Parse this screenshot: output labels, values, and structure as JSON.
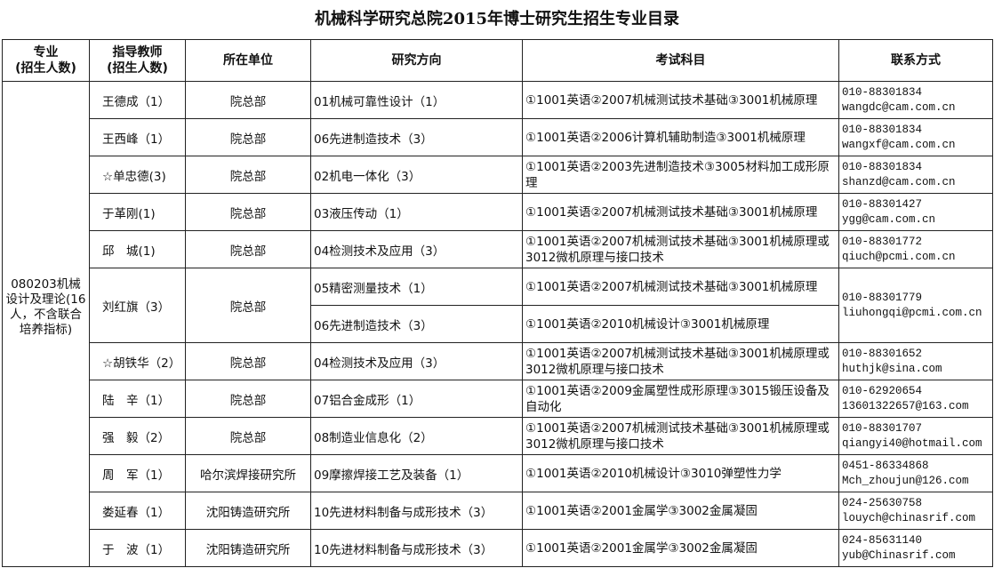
{
  "title": "机械科学研究总院2015年博士研究生招生专业目录",
  "headers": {
    "major": [
      "专业",
      "(招生人数)"
    ],
    "advisor": [
      "指导教师",
      "(招生人数)"
    ],
    "unit": "所在单位",
    "direction": "研究方向",
    "exam": "考试科目",
    "contact": "联系方式"
  },
  "major": "080203机械设计及理论(16人，不含联合培养指标)",
  "rows": [
    {
      "advisor": "王德成（1）",
      "unit": "院总部",
      "entries": [
        {
          "direction": "01机械可靠性设计（1）",
          "exam": "①1001英语②2007机械测试技术基础③3001机械原理"
        }
      ],
      "phone": "010-88301834",
      "email": "wangdc@cam.com.cn"
    },
    {
      "advisor": "王西峰（1）",
      "unit": "院总部",
      "entries": [
        {
          "direction": "06先进制造技术（3）",
          "exam": "①1001英语②2006计算机辅助制造③3001机械原理"
        }
      ],
      "phone": "010-88301834",
      "email": "wangxf@cam.com.cn"
    },
    {
      "advisor": "☆单忠德(3)",
      "unit": "院总部",
      "entries": [
        {
          "direction": "02机电一体化（3）",
          "exam": "①1001英语②2003先进制造技术③3005材料加工成形原理"
        }
      ],
      "phone": "010-88301834",
      "email": "shanzd@cam.com.cn"
    },
    {
      "advisor": "于革刚(1)",
      "unit": "院总部",
      "entries": [
        {
          "direction": "03液压传动（1）",
          "exam": "①1001英语②2007机械测试技术基础③3001机械原理"
        }
      ],
      "phone": "010-88301427",
      "email": "ygg@cam.com.cn"
    },
    {
      "advisor": "邱　城(1)",
      "unit": "院总部",
      "entries": [
        {
          "direction": "04检测技术及应用（3）",
          "exam": "①1001英语②2007机械测试技术基础③3001机械原理或3012微机原理与接口技术"
        }
      ],
      "phone": "010-88301772",
      "email": "qiuch@pcmi.com.cn"
    },
    {
      "advisor": "刘红旗（3）",
      "unit": "院总部",
      "entries": [
        {
          "direction": "05精密测量技术（1）",
          "exam": "①1001英语②2007机械测试技术基础③3001机械原理"
        },
        {
          "direction": "06先进制造技术（3）",
          "exam": "①1001英语②2010机械设计③3001机械原理"
        }
      ],
      "phone": "010-88301779",
      "email": "liuhongqi@pcmi.com.cn"
    },
    {
      "advisor": "☆胡铁华（2）",
      "unit": "院总部",
      "entries": [
        {
          "direction": "04检测技术及应用（3）",
          "exam": "①1001英语②2007机械测试技术基础③3001机械原理或3012微机原理与接口技术"
        }
      ],
      "phone": "010-88301652",
      "email": "huthjk@sina.com"
    },
    {
      "advisor": "陆　辛（1）",
      "unit": "院总部",
      "entries": [
        {
          "direction": "07铝合金成形（1）",
          "exam": "①1001英语②2009金属塑性成形原理③3015锻压设备及自动化"
        }
      ],
      "phone": "010-62920654",
      "email": "13601322657@163.com"
    },
    {
      "advisor": "强　毅（2）",
      "unit": "院总部",
      "entries": [
        {
          "direction": "08制造业信息化（2）",
          "exam": "①1001英语②2007机械测试技术基础③3001机械原理或3012微机原理与接口技术"
        }
      ],
      "phone": "010-88301707",
      "email": "qiangyi40@hotmail.com"
    },
    {
      "advisor": "周　军（1）",
      "unit": "哈尔滨焊接研究所",
      "entries": [
        {
          "direction": "09摩擦焊接工艺及装备（1）",
          "exam": "①1001英语②2010机械设计③3010弹塑性力学"
        }
      ],
      "phone": "0451-86334868",
      "email": "Mch_zhoujun@126.com"
    },
    {
      "advisor": "娄延春（1）",
      "unit": "沈阳铸造研究所",
      "entries": [
        {
          "direction": "10先进材料制备与成形技术（3）",
          "exam": "①1001英语②2001金属学③3002金属凝固"
        }
      ],
      "phone": "024-25630758",
      "email": "louych@chinasrif.com"
    },
    {
      "advisor": "于　波（1）",
      "unit": "沈阳铸造研究所",
      "entries": [
        {
          "direction": "10先进材料制备与成形技术（3）",
          "exam": "①1001英语②2001金属学③3002金属凝固"
        }
      ],
      "phone": "024-85631140",
      "email": "yub@Chinasrif.com"
    }
  ]
}
